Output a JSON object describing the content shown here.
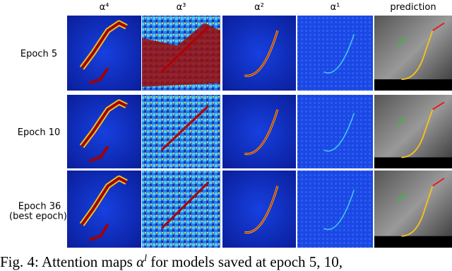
{
  "columns": [
    "α⁴",
    "α³",
    "α²",
    "α¹",
    "prediction"
  ],
  "rows": [
    {
      "label": "Epoch 5"
    },
    {
      "label": "Epoch 10"
    },
    {
      "label": "Epoch 36",
      "sublabel": "(best epoch)"
    }
  ],
  "caption": {
    "prefix": "Fig. 4: Attention maps ",
    "symbol": "α",
    "superscript": "l",
    "rest": " for models saved at epoch 5, 10,"
  }
}
